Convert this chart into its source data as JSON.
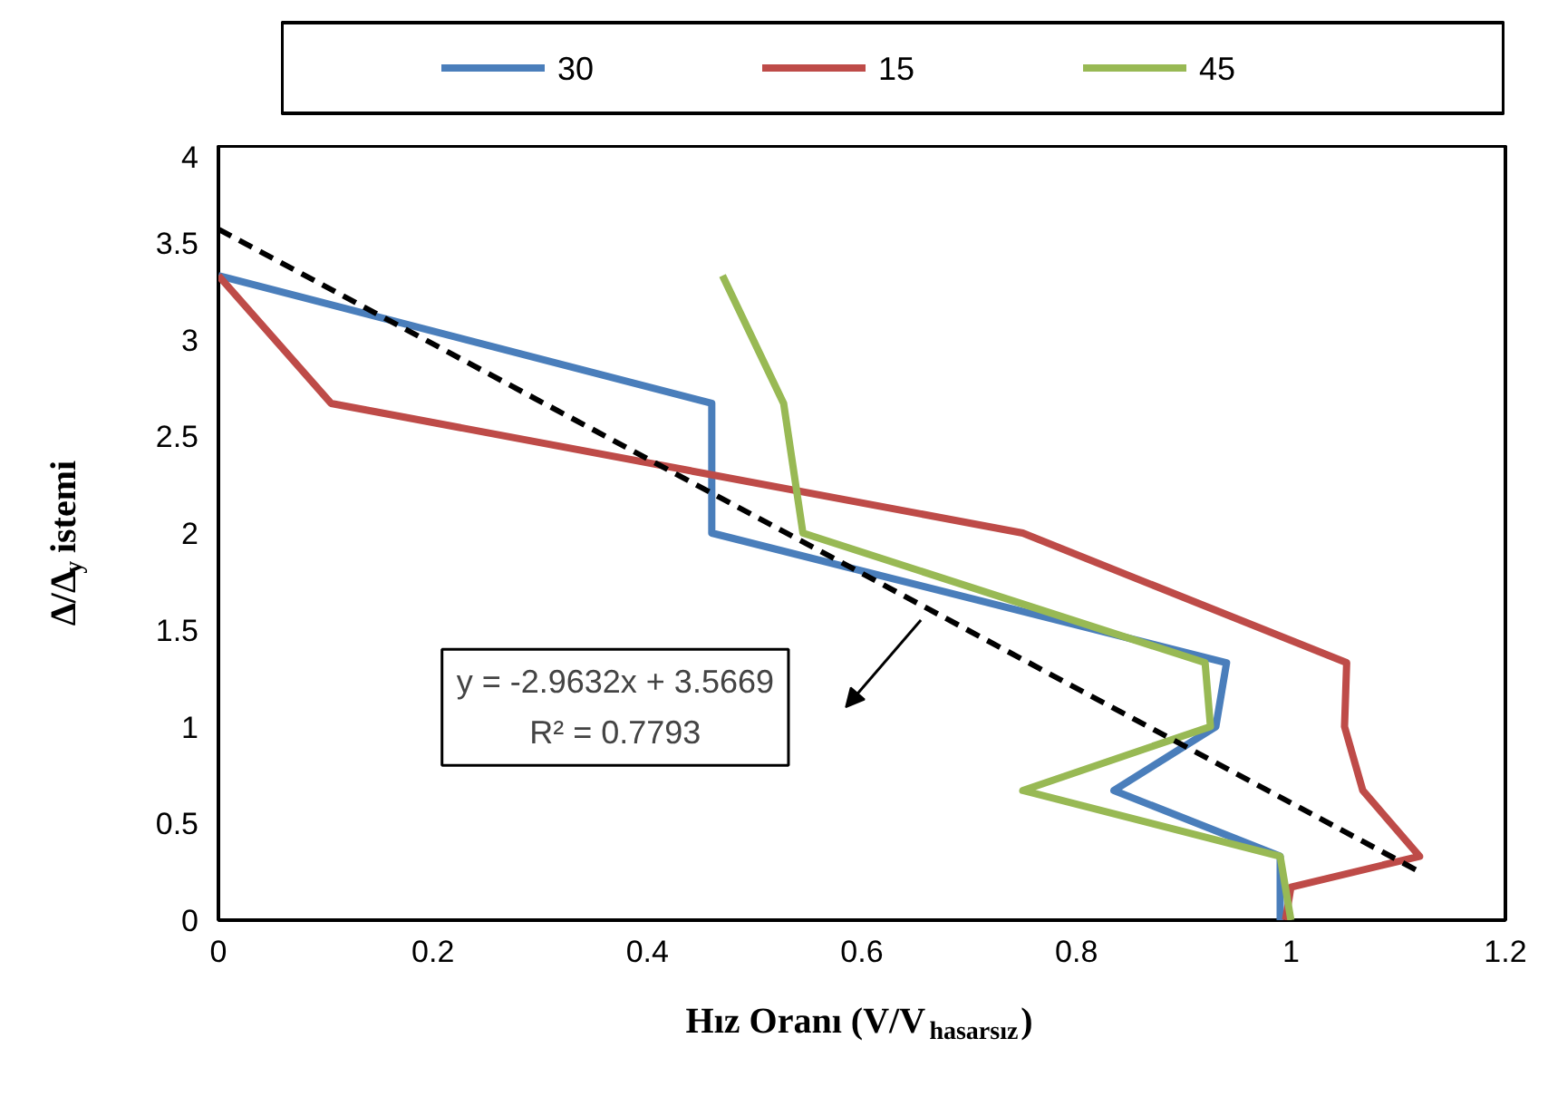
{
  "chart_data": {
    "type": "line",
    "xlabel": "Hız Oranı (V/V$_{hasarsız}$)",
    "ylabel": "Δ/Δ$_{y}$ istemi",
    "xlim": [
      0,
      1.2
    ],
    "xticks": [
      0,
      0.2,
      0.4,
      0.6,
      0.8,
      1,
      1.2
    ],
    "ylim": [
      0,
      4
    ],
    "yticks": [
      0,
      0.5,
      1,
      1.5,
      2,
      2.5,
      3,
      3.5,
      4
    ],
    "grid": false,
    "legend": "top",
    "series": [
      {
        "name": "30",
        "color": "#4a7ebb",
        "x": [
          0.99,
          0.99,
          0.835,
          0.93,
          0.94,
          0.46,
          0.46,
          0.0
        ],
        "values": [
          0,
          0.33,
          0.67,
          1.0,
          1.33,
          2.0,
          2.67,
          3.33
        ]
      },
      {
        "name": "15",
        "color": "#be4b48",
        "x": [
          0.995,
          1.0,
          1.12,
          1.067,
          1.05,
          1.052,
          0.75,
          0.105,
          0.0
        ],
        "values": [
          0,
          0.17,
          0.33,
          0.67,
          1.0,
          1.33,
          2.0,
          2.67,
          3.33
        ]
      },
      {
        "name": "45",
        "color": "#98b954",
        "x": [
          1.0,
          0.99,
          0.75,
          0.925,
          0.92,
          0.545,
          0.527,
          0.47
        ],
        "values": [
          0,
          0.33,
          0.67,
          1.0,
          1.33,
          2.0,
          2.67,
          3.33
        ]
      },
      {
        "type": "line",
        "line_style": "dashed",
        "color": "#000000",
        "x": [
          0,
          1.12
        ],
        "values": [
          3.57,
          0.25
        ]
      }
    ],
    "annotations": [
      "y = -2.9632x + 3.5669",
      "R² = 0.7793"
    ]
  }
}
